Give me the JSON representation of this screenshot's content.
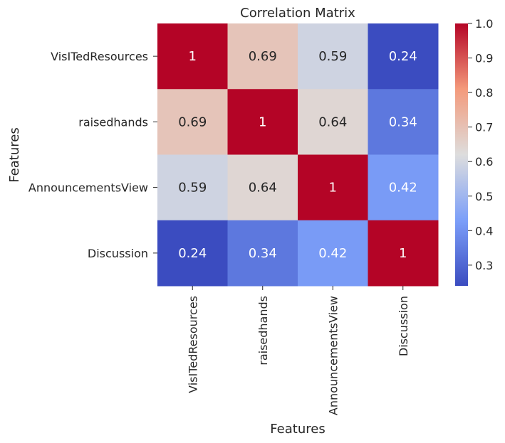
{
  "chart_data": {
    "type": "heatmap",
    "title": "Correlation Matrix",
    "xlabel": "Features",
    "ylabel": "Features",
    "x_categories": [
      "VisITedResources",
      "raisedhands",
      "AnnouncementsView",
      "Discussion"
    ],
    "y_categories": [
      "VisITedResources",
      "raisedhands",
      "AnnouncementsView",
      "Discussion"
    ],
    "values": [
      [
        1.0,
        0.69,
        0.59,
        0.24
      ],
      [
        0.69,
        1.0,
        0.64,
        0.34
      ],
      [
        0.59,
        0.64,
        1.0,
        0.42
      ],
      [
        0.24,
        0.34,
        0.42,
        1.0
      ]
    ],
    "cell_labels": [
      [
        "1",
        "0.69",
        "0.59",
        "0.24"
      ],
      [
        "0.69",
        "1",
        "0.64",
        "0.34"
      ],
      [
        "0.59",
        "0.64",
        "1",
        "0.42"
      ],
      [
        "0.24",
        "0.34",
        "0.42",
        "1"
      ]
    ],
    "colormap": "coolwarm",
    "vmin": 0.24,
    "vmax": 1.0,
    "colorbar_ticks": [
      "0.3",
      "0.4",
      "0.5",
      "0.6",
      "0.7",
      "0.8",
      "0.9",
      "1.0"
    ],
    "colorbar_tick_values": [
      0.3,
      0.4,
      0.5,
      0.6,
      0.7,
      0.8,
      0.9,
      1.0
    ],
    "colorbar_location": "right",
    "colors": {
      "low": "#3b4cc0",
      "mid": "#dddddd",
      "high": "#b40426",
      "text_dark": "#262626",
      "text_light": "#ffffff"
    }
  }
}
